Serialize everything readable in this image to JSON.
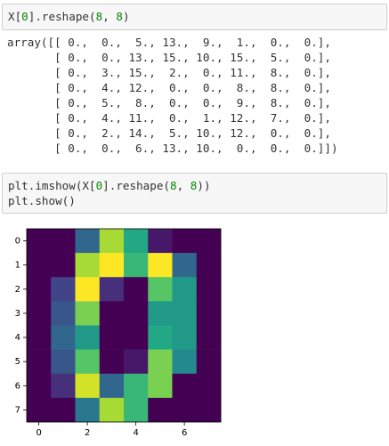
{
  "cells": [
    {
      "input": [
        "X[0].reshape(8, 8)"
      ],
      "output": [
        "array([[ 0.,  0.,  5., 13.,  9.,  1.,  0.,  0.],",
        "       [ 0.,  0., 13., 15., 10., 15.,  5.,  0.],",
        "       [ 0.,  3., 15.,  2.,  0., 11.,  8.,  0.],",
        "       [ 0.,  4., 12.,  0.,  0.,  8.,  8.,  0.],",
        "       [ 0.,  5.,  8.,  0.,  0.,  9.,  8.,  0.],",
        "       [ 0.,  4., 11.,  0.,  1., 12.,  7.,  0.],",
        "       [ 0.,  2., 14.,  5., 10., 12.,  0.,  0.],",
        "       [ 0.,  0.,  6., 13., 10.,  0.,  0.,  0.]])"
      ]
    },
    {
      "input": [
        "plt.imshow(X[0].reshape(8, 8))",
        "plt.show()"
      ]
    }
  ],
  "chart_data": {
    "type": "heatmap",
    "colormap": "viridis",
    "values": [
      [
        0,
        0,
        5,
        13,
        9,
        1,
        0,
        0
      ],
      [
        0,
        0,
        13,
        15,
        10,
        15,
        5,
        0
      ],
      [
        0,
        3,
        15,
        2,
        0,
        11,
        8,
        0
      ],
      [
        0,
        4,
        12,
        0,
        0,
        8,
        8,
        0
      ],
      [
        0,
        5,
        8,
        0,
        0,
        9,
        8,
        0
      ],
      [
        0,
        4,
        11,
        0,
        1,
        12,
        7,
        0
      ],
      [
        0,
        2,
        14,
        5,
        10,
        12,
        0,
        0
      ],
      [
        0,
        0,
        6,
        13,
        10,
        0,
        0,
        0
      ]
    ],
    "xlim": [
      -0.5,
      7.5
    ],
    "ylim": [
      7.5,
      -0.5
    ],
    "xticks": [
      0,
      2,
      4,
      6
    ],
    "yticks": [
      0,
      1,
      2,
      3,
      4,
      5,
      6,
      7
    ]
  }
}
